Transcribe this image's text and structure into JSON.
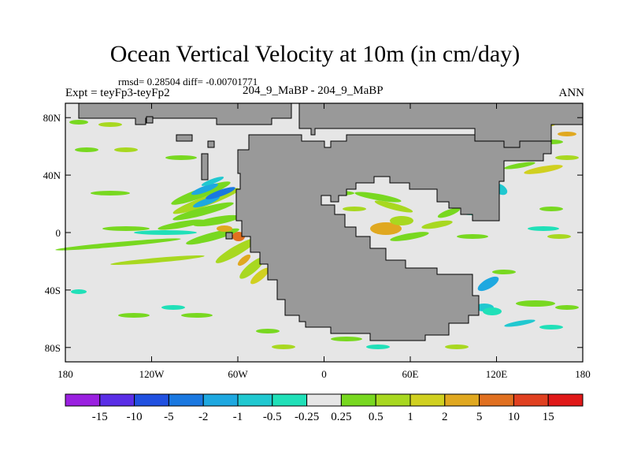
{
  "title": "Ocean Vertical Velocity at 10m (in cm/day)",
  "stats": "rmsd= 0.28504  diff= -0.00701771",
  "expt_label": "Expt = teyFp3-teyFp2",
  "cases_label": "204_9_MaBP - 204_9_MaBP",
  "season_label": "ANN",
  "map": {
    "lat_ticks": [
      "80N",
      "40N",
      "0",
      "40S",
      "80S"
    ],
    "lat_values": [
      80,
      40,
      0,
      -40,
      -80
    ],
    "lon_ticks": [
      "180",
      "120W",
      "60W",
      "0",
      "60E",
      "120E",
      "180"
    ],
    "lon_values": [
      -180,
      -120,
      -60,
      0,
      60,
      120,
      180
    ],
    "lat_range": [
      -90,
      90
    ],
    "lon_range": [
      -180,
      180
    ],
    "ocean_color": "#e6e6e6",
    "land_color": "#999999"
  },
  "colorbar": {
    "labels": [
      "-15",
      "-10",
      "-5",
      "-2",
      "-1",
      "-0.5",
      "-0.25",
      "0.25",
      "0.5",
      "1",
      "2",
      "5",
      "10",
      "15"
    ],
    "colors": [
      "#9a20e0",
      "#5a2ee6",
      "#2050e0",
      "#1a78e0",
      "#1ea8e0",
      "#20c8d0",
      "#20e0b8",
      "#e6e6e6",
      "#78d820",
      "#a8d820",
      "#d0d020",
      "#e0a820",
      "#e07020",
      "#e04020",
      "#e01818"
    ]
  }
}
